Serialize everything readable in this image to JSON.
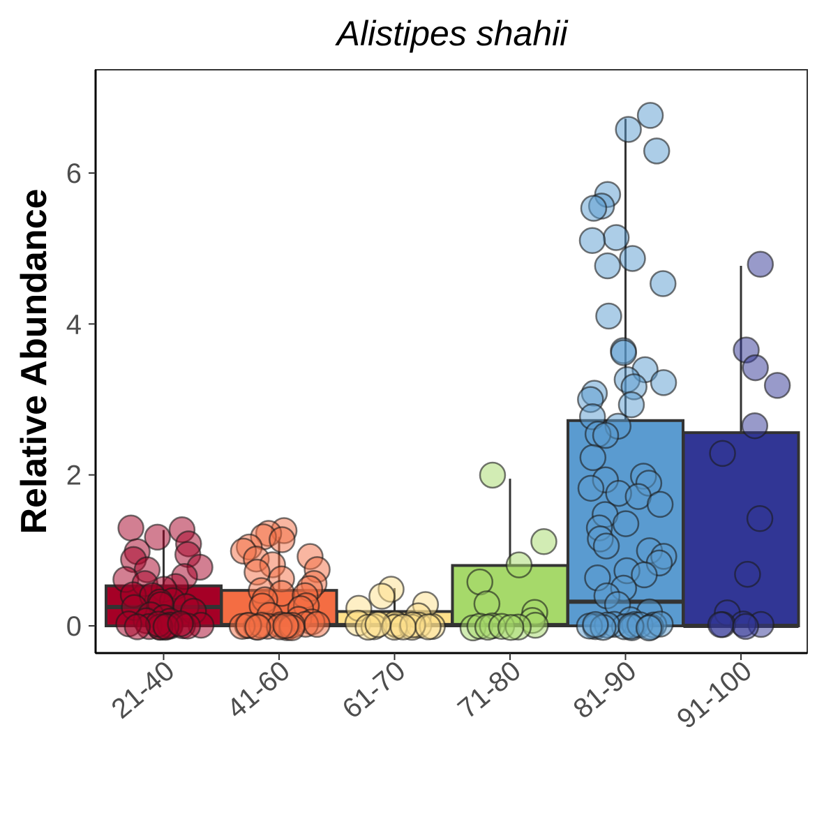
{
  "chart_data": {
    "type": "bar",
    "title": "Alistipes shahii",
    "xlabel": "",
    "ylabel": "Relative Abundance",
    "ylim": [
      -0.35,
      7.3
    ],
    "yticks": [
      "0",
      "2",
      "4",
      "6"
    ],
    "grid": false,
    "legend": "none",
    "categories": [
      "21-40",
      "41-60",
      "61-70",
      "71-80",
      "81-90",
      "91-100"
    ],
    "values": [
      0.53,
      0.47,
      0.19,
      0.8,
      2.72,
      2.56
    ],
    "medians": [
      0.25,
      0.01,
      0.01,
      0.01,
      0.32,
      0.0
    ],
    "whisker_max": [
      1.27,
      1.18,
      0.5,
      1.95,
      6.72,
      4.77
    ],
    "colors": [
      "#a50026",
      "#f46d43",
      "#fee08b",
      "#a6d96a",
      "#5a9bd0",
      "#313695"
    ],
    "points": [
      [
        1.3,
        1.28,
        1.16,
        1.06,
        0.96,
        0.95,
        0.9,
        0.78,
        0.72,
        0.66,
        0.6,
        0.56,
        0.5,
        0.47,
        0.42,
        0.4,
        0.36,
        0.33,
        0.3,
        0.27,
        0.24,
        0.2,
        0.17,
        0.12,
        0.08,
        0.04,
        0.02,
        0,
        0,
        0,
        0,
        0,
        0,
        0,
        0,
        0,
        0,
        0,
        0,
        0
      ],
      [
        1.25,
        1.22,
        1.18,
        1.12,
        1.05,
        0.98,
        0.92,
        0.88,
        0.8,
        0.76,
        0.7,
        0.64,
        0.58,
        0.52,
        0.46,
        0.42,
        0.38,
        0.33,
        0.28,
        0.24,
        0.2,
        0.15,
        0.1,
        0.05,
        0.02,
        0,
        0,
        0,
        0,
        0,
        0,
        0,
        0,
        0,
        0,
        0,
        0,
        0,
        0,
        0
      ],
      [
        0.5,
        0.42,
        0.3,
        0.22,
        0.12,
        0.05,
        0,
        0,
        0,
        0,
        0,
        0,
        0,
        0,
        0,
        0,
        0,
        0
      ],
      [
        1.97,
        1.1,
        0.82,
        0.6,
        0.32,
        0.18,
        0.08,
        0,
        0,
        0,
        0,
        0,
        0,
        0,
        0
      ],
      [
        6.75,
        6.58,
        6.32,
        5.7,
        5.55,
        5.52,
        5.12,
        5.1,
        4.85,
        4.75,
        4.55,
        4.08,
        3.65,
        3.6,
        3.4,
        3.25,
        3.2,
        3.15,
        3.1,
        3.0,
        2.95,
        2.75,
        2.62,
        2.55,
        2.5,
        2.25,
        2.0,
        1.95,
        1.9,
        1.8,
        1.75,
        1.7,
        1.6,
        1.5,
        1.38,
        1.3,
        1.15,
        1.05,
        0.98,
        0.92,
        0.85,
        0.75,
        0.68,
        0.62,
        0.5,
        0.4,
        0.3,
        0.2,
        0.1,
        0,
        0,
        0,
        0,
        0,
        0,
        0,
        0,
        0,
        0,
        0,
        0,
        0,
        0,
        0
      ],
      [
        4.8,
        3.68,
        3.42,
        3.18,
        2.65,
        2.27,
        1.4,
        0.68,
        0.15,
        0,
        0,
        0,
        0,
        0
      ]
    ]
  }
}
